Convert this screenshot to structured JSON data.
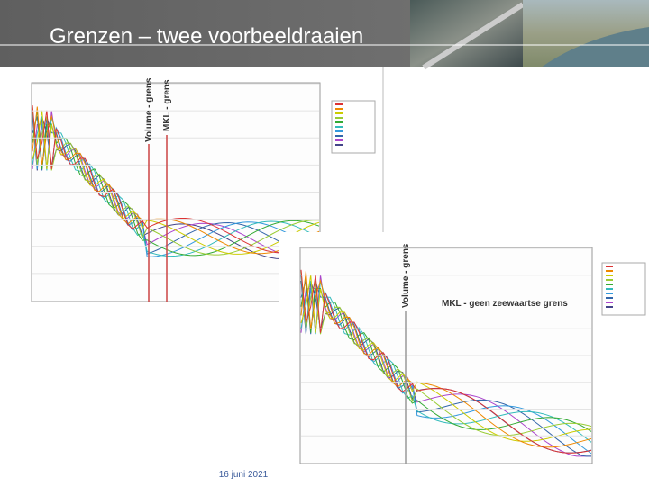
{
  "header": {
    "title": "Grenzen – twee voorbeeldraaien"
  },
  "chart_left": {
    "annotations": [
      "Volume - grens",
      "MKL - grens"
    ]
  },
  "chart_right": {
    "annotations": [
      "Volume - grens",
      "MKL - geen zeewaartse grens"
    ]
  },
  "footer": {
    "date": "16 juni 2021"
  }
}
